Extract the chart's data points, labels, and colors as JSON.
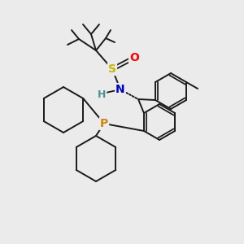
{
  "background_color": "#ebebeb",
  "bond_color": "#1a1a1a",
  "atom_colors": {
    "S": "#c8b400",
    "O": "#ff0000",
    "N": "#0000cd",
    "H": "#4a9090",
    "P": "#d4820a",
    "C": "#1a1a1a"
  },
  "figsize": [
    3.0,
    3.0
  ],
  "dpi": 100
}
